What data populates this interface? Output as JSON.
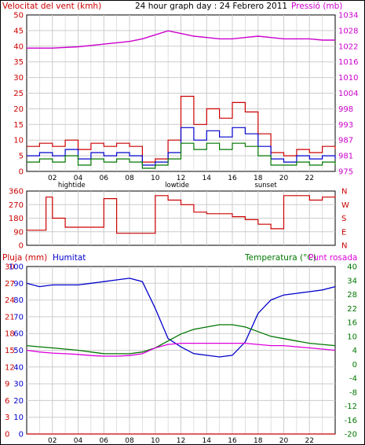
{
  "chart_data": [
    {
      "type": "line",
      "title": "24 hour graph day : 24 Febrero 2011",
      "ylabel_left": "Velocitat del vent (kmh)",
      "ylabel_right": "Pressió (mb)",
      "ylim_left": [
        0,
        50
      ],
      "yticks_left": [
        "0",
        "5",
        "10",
        "15",
        "20",
        "25",
        "30",
        "35",
        "40",
        "45",
        "50"
      ],
      "yticks_right": [
        "975",
        "981",
        "987",
        "993",
        "998",
        "1004",
        "1010",
        "1016",
        "1022",
        "1028",
        "1034"
      ],
      "xticks": [
        "02",
        "04",
        "06",
        "08",
        "10",
        "12",
        "14",
        "16",
        "18",
        "20",
        "22",
        ""
      ],
      "events": [
        {
          "label": "hightide",
          "hour": 3.5
        },
        {
          "label": "lowtide",
          "hour": 11.7
        },
        {
          "label": "sunset",
          "hour": 18.6
        }
      ],
      "grid": true,
      "series": [
        {
          "key": "pressure",
          "color": "#cc00cc",
          "axis": "right",
          "x": [
            0,
            2,
            4,
            6,
            7,
            8,
            9,
            10,
            11,
            12,
            13,
            14,
            15,
            16,
            17,
            18,
            19,
            20,
            21,
            22,
            23,
            24
          ],
          "y": [
            1021.5,
            1021.5,
            1022,
            1023,
            1023.5,
            1024,
            1025,
            1026.5,
            1028,
            1027,
            1026,
            1025.5,
            1025,
            1025,
            1025.5,
            1026,
            1025.5,
            1025,
            1025,
            1025,
            1024.5,
            1024.5
          ]
        },
        {
          "key": "gust",
          "color": "#cc0000",
          "axis": "left",
          "x": [
            0,
            1,
            2,
            3,
            4,
            5,
            6,
            7,
            8,
            9,
            10,
            11,
            12,
            13,
            14,
            15,
            16,
            17,
            18,
            19,
            20,
            21,
            22,
            23,
            24
          ],
          "y": [
            8,
            9,
            8,
            10,
            7,
            9,
            8,
            9,
            8,
            3,
            4,
            10,
            24,
            15,
            20,
            17,
            22,
            19,
            12,
            6,
            5,
            7,
            6,
            8,
            7
          ]
        },
        {
          "key": "average",
          "color": "#0000cc",
          "axis": "left",
          "x": [
            0,
            1,
            2,
            3,
            4,
            5,
            6,
            7,
            8,
            9,
            10,
            11,
            12,
            13,
            14,
            15,
            16,
            17,
            18,
            19,
            20,
            21,
            22,
            23,
            24
          ],
          "y": [
            5,
            6,
            5,
            7,
            4,
            6,
            5,
            6,
            5,
            2,
            3,
            6,
            14,
            10,
            13,
            11,
            14,
            12,
            8,
            4,
            3,
            5,
            4,
            5,
            4
          ]
        },
        {
          "key": "lowwind",
          "color": "#007700",
          "axis": "left",
          "x": [
            0,
            1,
            2,
            3,
            4,
            5,
            6,
            7,
            8,
            9,
            10,
            11,
            12,
            13,
            14,
            15,
            16,
            17,
            18,
            19,
            20,
            21,
            22,
            23,
            24
          ],
          "y": [
            3,
            4,
            3,
            5,
            2,
            4,
            3,
            4,
            3,
            1,
            2,
            4,
            9,
            7,
            9,
            7,
            9,
            8,
            5,
            2,
            2,
            3,
            2,
            3,
            2
          ]
        }
      ]
    },
    {
      "type": "line",
      "yticks_left": [
        "360",
        "270",
        "180",
        "90",
        "0"
      ],
      "ylim_left": [
        0,
        360
      ],
      "yticks_right": [
        "N",
        "W",
        "S",
        "E",
        "N"
      ],
      "xticks": [
        "02",
        "04",
        "06",
        "08",
        "10",
        "12",
        "14",
        "16",
        "18",
        "20",
        "22",
        ""
      ],
      "grid": true,
      "series": [
        {
          "key": "direction",
          "color": "#cc0000",
          "x": [
            0,
            0.5,
            1.5,
            2,
            3,
            4,
            5,
            6,
            7,
            8,
            9,
            10,
            11,
            12,
            13,
            14,
            15,
            16,
            17,
            18,
            19,
            20,
            21,
            22,
            23,
            24
          ],
          "y": [
            100,
            100,
            320,
            180,
            120,
            120,
            120,
            310,
            80,
            80,
            80,
            330,
            300,
            270,
            220,
            210,
            210,
            190,
            170,
            140,
            110,
            330,
            330,
            300,
            320,
            330
          ]
        }
      ]
    },
    {
      "type": "line",
      "ylabel_left_1": "Pluja (mm)",
      "ylabel_left_2": "Humitat",
      "ylabel_right_1": "Temperatura (°C)",
      "ylabel_right_2": "Punt rosada",
      "yticks_rain": [
        "0",
        "3",
        "6",
        "9",
        "12",
        "15",
        "18",
        "21",
        "24",
        "27",
        "30"
      ],
      "yticks_hum": [
        "0",
        "10",
        "20",
        "30",
        "40",
        "50",
        "60",
        "70",
        "80",
        "90",
        "100"
      ],
      "yticks_temp": [
        "-20",
        "-16",
        "-12",
        "-8",
        "-4",
        "0",
        "4",
        "10",
        "16",
        "22",
        "28",
        "34",
        "40"
      ],
      "xticks": [
        "02",
        "04",
        "06",
        "08",
        "10",
        "12",
        "14",
        "16",
        "18",
        "20",
        "22",
        ""
      ],
      "grid": true,
      "series": [
        {
          "key": "humidity",
          "color": "#0000cc",
          "x": [
            0,
            1,
            2,
            3,
            4,
            5,
            6,
            7,
            8,
            9,
            10,
            11,
            12,
            13,
            14,
            15,
            16,
            17,
            18,
            19,
            20,
            21,
            22,
            23,
            24
          ],
          "y": [
            90,
            88,
            89,
            89,
            89,
            90,
            91,
            92,
            93,
            91,
            75,
            57,
            52,
            48,
            47,
            46,
            47,
            55,
            72,
            80,
            83,
            84,
            85,
            86,
            88
          ]
        },
        {
          "key": "temperature",
          "color": "#007700",
          "x": [
            0,
            1,
            2,
            3,
            4,
            5,
            6,
            7,
            8,
            9,
            10,
            11,
            12,
            13,
            14,
            15,
            16,
            17,
            18,
            19,
            20,
            21,
            22,
            23,
            24
          ],
          "y": [
            6,
            5.5,
            5,
            4.5,
            4,
            3.5,
            3,
            3,
            3,
            3.5,
            5,
            8,
            11,
            13,
            14,
            15,
            15,
            14,
            12,
            10,
            9,
            8,
            7,
            6.5,
            6
          ]
        },
        {
          "key": "dewpoint",
          "color": "#dd00dd",
          "x": [
            0,
            1,
            2,
            3,
            4,
            5,
            6,
            7,
            8,
            9,
            10,
            11,
            12,
            13,
            14,
            15,
            16,
            17,
            18,
            19,
            20,
            21,
            22,
            23,
            24
          ],
          "y": [
            4,
            3.5,
            3.2,
            3,
            2.8,
            2.5,
            2.3,
            2.3,
            2.5,
            3,
            5,
            6.5,
            7,
            7,
            7,
            7,
            7,
            7,
            6.5,
            6,
            6,
            5.5,
            5,
            4.5,
            4
          ]
        },
        {
          "key": "rain",
          "color": "#cc0000",
          "x": [
            0,
            24
          ],
          "y": [
            0,
            0
          ]
        }
      ]
    }
  ],
  "legend": {
    "c1_left": "Velocitat del vent (kmh)",
    "c1_title": "24 hour graph day : 24 Febrero 2011",
    "c1_right": "Pressió (mb)",
    "c3_rain": "Pluja (mm)",
    "c3_hum": "Humitat",
    "c3_temp": "Temperatura (°C)",
    "c3_dew": "Punt rosada"
  }
}
